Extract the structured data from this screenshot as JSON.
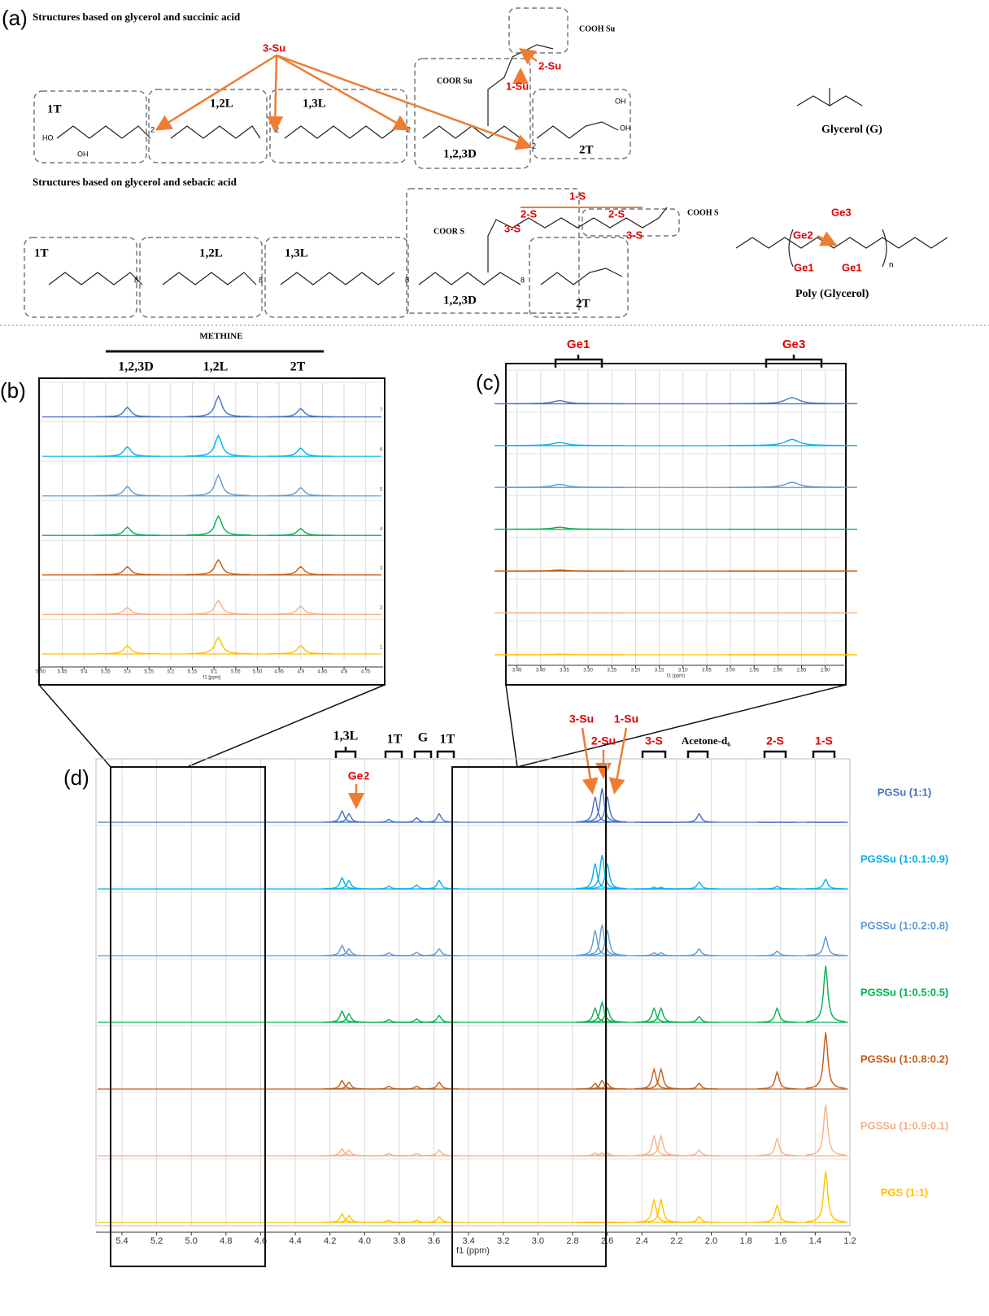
{
  "panel_a": {
    "letter": "(a)",
    "succinic": {
      "heading": "Structures based on glycerol and succinic acid",
      "segments": [
        "1T",
        "1,2L",
        "1,3L",
        "1,2,3D",
        "2T"
      ],
      "coor": "COOR Su",
      "cooh": "COOH Su",
      "labels": [
        "3-Su",
        "2-Su",
        "1-Su"
      ],
      "subscript": "2"
    },
    "sebacic": {
      "heading": "Structures based on glycerol and sebacic acid",
      "segments": [
        "1T",
        "1,2L",
        "1,3L",
        "1,2,3D",
        "2T"
      ],
      "coor": "COOR S",
      "cooh": "COOH S",
      "labels": [
        "1-S",
        "2-S",
        "2-S",
        "3-S",
        "3-S"
      ],
      "subscript": "8"
    },
    "atoms": {
      "hydroxyl_left": "HO",
      "hydroxyl_right": "OH"
    },
    "glycerol": "Glycerol (G)",
    "polyglycerol": {
      "name": "Poly (Glycerol)",
      "labels": [
        "Ge1",
        "Ge1",
        "Ge2",
        "Ge3"
      ],
      "n": "n"
    }
  },
  "panel_b": {
    "letter": "(b)",
    "title": "METHINE",
    "peak_labels": [
      "1,2,3D",
      "1,2L",
      "2T"
    ],
    "xlabel": "f1 [ppm]",
    "xlim": [
      5.5,
      4.71
    ],
    "xticks": [
      {
        "value": 5.5,
        "label": "5.50"
      },
      5.45,
      5.4,
      5.35,
      5.3,
      5.25,
      5.2,
      5.15,
      5.1,
      5.05,
      {
        "value": 5,
        "label": "5.00"
      },
      4.95,
      4.9,
      4.85,
      4.8,
      4.75
    ],
    "row_labels": [
      "7",
      "6",
      "5",
      "4",
      "3",
      "2",
      "1"
    ],
    "peaks": [
      5.3,
      5.09,
      4.9
    ],
    "heights": [
      [
        0.35,
        0.75,
        0.3
      ],
      [
        0.35,
        0.75,
        0.3
      ],
      [
        0.35,
        0.75,
        0.3
      ],
      [
        0.3,
        0.7,
        0.25
      ],
      [
        0.3,
        0.55,
        0.3
      ],
      [
        0.25,
        0.5,
        0.3
      ],
      [
        0.3,
        0.6,
        0.3
      ]
    ]
  },
  "panel_c": {
    "letter": "(c)",
    "peak_labels": [
      "Ge1",
      "Ge3"
    ],
    "xlabel": "f1 (ppm)",
    "xlim": [
      3.47,
      2.76
    ],
    "xticks": [
      3.45,
      {
        "value": 3.4,
        "label": "3.40"
      },
      3.35,
      {
        "value": 3.3,
        "label": "3.30"
      },
      3.25,
      {
        "value": 3.2,
        "label": "3.20"
      },
      3.15,
      {
        "value": 3.1,
        "label": "3.10"
      },
      3.05,
      {
        "value": 3,
        "label": "3.00"
      },
      2.95,
      {
        "value": 2.9,
        "label": "2.90"
      },
      2.85,
      {
        "value": 2.8,
        "label": "2.80"
      }
    ],
    "peaks": [
      3.36,
      2.87
    ],
    "heights": [
      [
        0.15,
        0.3
      ],
      [
        0.15,
        0.3
      ],
      [
        0.15,
        0.25
      ],
      [
        0.1,
        0
      ],
      [
        0.05,
        0
      ],
      [
        0,
        0
      ],
      [
        0.03,
        0
      ]
    ]
  },
  "panel_d": {
    "letter": "(d)",
    "peak_labels": [
      "1,3L",
      "1T",
      "G",
      "1T",
      "3-Su",
      "2-Su",
      "1-Su",
      "3-S",
      "Acetone-d₆",
      "2-S",
      "1-S",
      "Ge2"
    ],
    "xlabel": "f1 (ppm)",
    "xlim": [
      5.55,
      1.2
    ],
    "xticks": [
      5.4,
      5.2,
      {
        "value": 5,
        "label": "5.0"
      },
      4.8,
      4.6,
      4.4,
      4.2,
      {
        "value": 4,
        "label": "4.0"
      },
      3.8,
      3.6,
      3.4,
      3.2,
      {
        "value": 3,
        "label": "3.0"
      },
      2.8,
      2.6,
      2.4,
      2.2,
      {
        "value": 2,
        "label": "2.0"
      },
      1.8,
      1.6,
      1.4,
      1.2
    ],
    "peaks": [
      4.13,
      4.09,
      3.86,
      3.7,
      3.57,
      2.67,
      2.63,
      2.6,
      2.33,
      2.29,
      2.07,
      1.62,
      1.34
    ],
    "series": [
      {
        "name": "PGSu (1:1)",
        "color": "#4472c4",
        "heights": [
          0.2,
          0.15,
          0.05,
          0.08,
          0.15,
          0.45,
          0.6,
          0.45,
          0,
          0,
          0.15,
          0,
          0
        ]
      },
      {
        "name": "PGSSu (1:0.1:0.9)",
        "color": "#00b0f0",
        "heights": [
          0.2,
          0.15,
          0.05,
          0.07,
          0.15,
          0.45,
          0.6,
          0.45,
          0.03,
          0.03,
          0.12,
          0.05,
          0.17
        ]
      },
      {
        "name": "PGSSu (1:0.2:0.8)",
        "color": "#5b9bd5",
        "heights": [
          0.18,
          0.12,
          0.05,
          0.06,
          0.12,
          0.45,
          0.55,
          0.45,
          0.05,
          0.05,
          0.12,
          0.08,
          0.33
        ]
      },
      {
        "name": "PGSSu (1:0.5:0.5)",
        "color": "#00b050",
        "heights": [
          0.2,
          0.15,
          0.05,
          0.06,
          0.12,
          0.25,
          0.35,
          0.25,
          0.25,
          0.25,
          0.1,
          0.25,
          1.0
        ]
      },
      {
        "name": "PGSSu (1:0.8:0.2)",
        "color": "#c55a11",
        "heights": [
          0.15,
          0.12,
          0.05,
          0.05,
          0.12,
          0.1,
          0.15,
          0.1,
          0.35,
          0.35,
          0.1,
          0.3,
          1.0
        ]
      },
      {
        "name": "PGSSu (1:0.9:0.1)",
        "color": "#f4b183",
        "heights": [
          0.12,
          0.1,
          0.04,
          0.04,
          0.1,
          0.05,
          0.05,
          0.05,
          0.35,
          0.35,
          0.1,
          0.3,
          0.9
        ]
      },
      {
        "name": "PGS (1:1)",
        "color": "#ffc000",
        "heights": [
          0.15,
          0.12,
          0.04,
          0.04,
          0.1,
          0,
          0,
          0,
          0.4,
          0.4,
          0.1,
          0.3,
          0.9
        ]
      }
    ]
  }
}
